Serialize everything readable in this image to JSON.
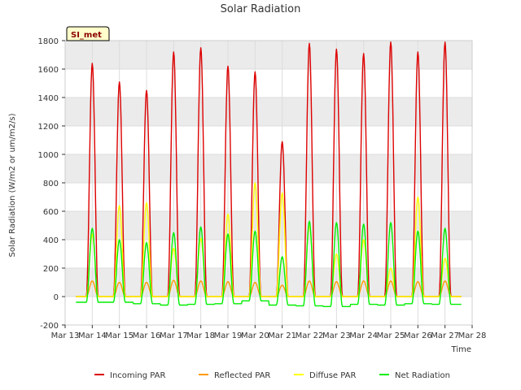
{
  "chart_data": {
    "type": "line",
    "title": "Solar Radiation",
    "xlabel": "Time",
    "ylabel": "Solar Radiation (W/m2 or um/m2/s)",
    "station_label": "SI_met",
    "xlim": [
      13,
      28
    ],
    "ylim": [
      -200,
      1800
    ],
    "x_ticks": [
      13,
      14,
      15,
      16,
      17,
      18,
      19,
      20,
      21,
      22,
      23,
      24,
      25,
      26,
      27,
      28
    ],
    "x_tick_labels": [
      "Mar 13",
      "Mar 14",
      "Mar 15",
      "Mar 16",
      "Mar 17",
      "Mar 18",
      "Mar 19",
      "Mar 20",
      "Mar 21",
      "Mar 22",
      "Mar 23",
      "Mar 24",
      "Mar 25",
      "Mar 26",
      "Mar 27",
      "Mar 28"
    ],
    "y_ticks": [
      -200,
      0,
      200,
      400,
      600,
      800,
      1000,
      1200,
      1400,
      1600,
      1800
    ],
    "grid": true,
    "legend_position": "bottom",
    "days": [
      14,
      15,
      16,
      17,
      18,
      19,
      20,
      21,
      22,
      23,
      24,
      25,
      26,
      27
    ],
    "series": [
      {
        "name": "Incoming PAR",
        "color": "#dd0000",
        "values": [
          1640,
          1510,
          1450,
          1720,
          1750,
          1620,
          1580,
          1090,
          1780,
          1740,
          1710,
          1790,
          1720,
          1790
        ]
      },
      {
        "name": "Reflected PAR",
        "color": "#ff9900",
        "values": [
          110,
          100,
          100,
          115,
          110,
          105,
          100,
          80,
          110,
          105,
          110,
          110,
          105,
          110
        ]
      },
      {
        "name": "Diffuse PAR",
        "color": "#ffff00",
        "values": [
          440,
          640,
          660,
          340,
          410,
          580,
          800,
          730,
          500,
          300,
          400,
          200,
          700,
          270
        ]
      },
      {
        "name": "Net Radiation",
        "color": "#00ee00",
        "values": [
          480,
          400,
          380,
          450,
          490,
          440,
          460,
          280,
          530,
          520,
          510,
          520,
          460,
          480
        ],
        "night_values": [
          -40,
          -40,
          -50,
          -60,
          -55,
          -50,
          -30,
          -60,
          -65,
          -70,
          -55,
          -60,
          -50,
          -55
        ]
      }
    ]
  }
}
